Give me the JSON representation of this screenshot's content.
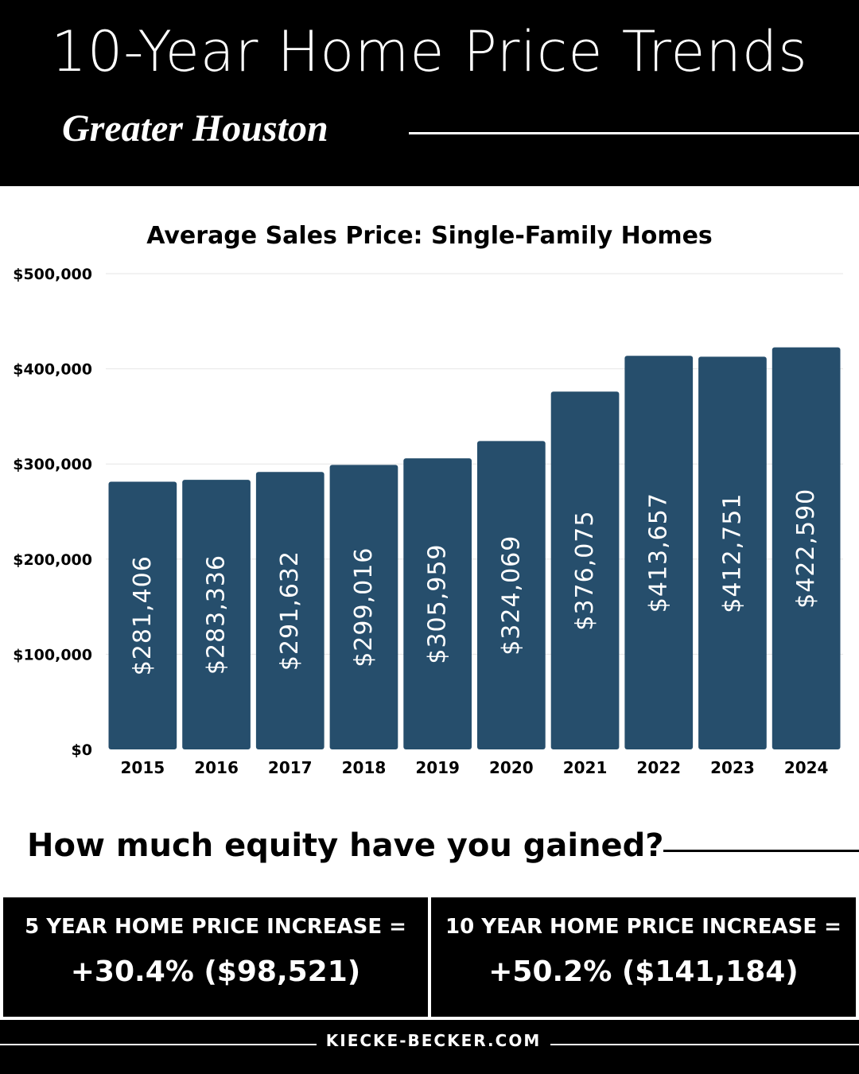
{
  "header": {
    "title": "10-Year Home Price Trends",
    "subtitle": "Greater Houston"
  },
  "chart_data": {
    "type": "bar",
    "title": "Average Sales Price: Single-Family Homes",
    "categories": [
      "2015",
      "2016",
      "2017",
      "2018",
      "2019",
      "2020",
      "2021",
      "2022",
      "2023",
      "2024"
    ],
    "values": [
      281406,
      283336,
      291632,
      299016,
      305959,
      324069,
      376075,
      413657,
      412751,
      422590
    ],
    "data_labels": [
      "$281,406",
      "$283,336",
      "$291,632",
      "$299,016",
      "$305,959",
      "$324,069",
      "$376,075",
      "$413,657",
      "$412,751",
      "$422,590"
    ],
    "y_ticks": [
      0,
      100000,
      200000,
      300000,
      400000,
      500000
    ],
    "y_tick_labels": [
      "$0",
      "$100,000",
      "$200,000",
      "$300,000",
      "$400,000",
      "$500,000"
    ],
    "ylim": [
      0,
      500000
    ],
    "xlabel": "",
    "ylabel": "",
    "grid": true,
    "bar_color": "#264e6c"
  },
  "equity": {
    "heading": "How much equity have you gained?",
    "five_year_label": "5 YEAR HOME PRICE INCREASE =",
    "five_year_value": "+30.4% ($98,521)",
    "ten_year_label": "10 YEAR HOME PRICE INCREASE =",
    "ten_year_value": "+50.2% ($141,184)"
  },
  "footer": {
    "site": "KIECKE-BECKER.COM"
  }
}
